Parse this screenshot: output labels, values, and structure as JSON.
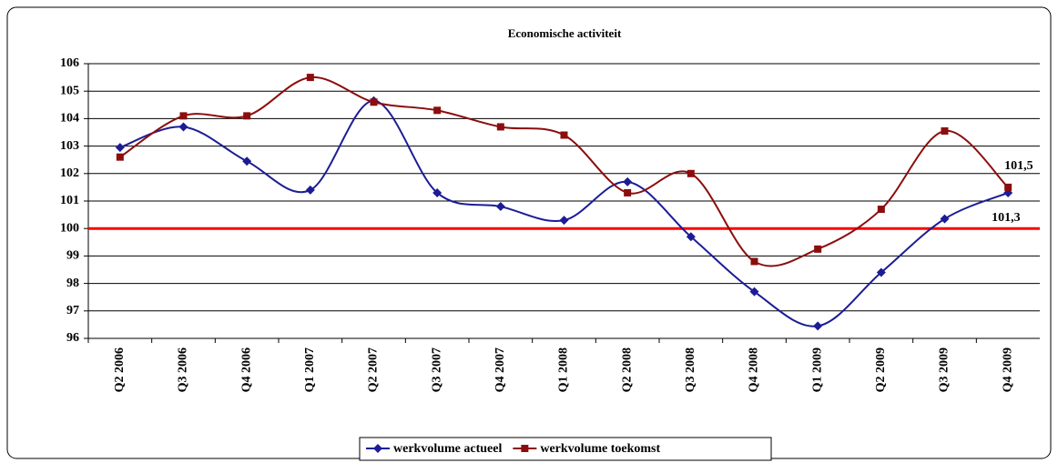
{
  "chart_data": {
    "type": "line",
    "title": "Economische activiteit",
    "categories": [
      "Q2 2006",
      "Q3 2006",
      "Q4 2006",
      "Q1 2007",
      "Q2 2007",
      "Q3 2007",
      "Q4 2007",
      "Q1 2008",
      "Q2 2008",
      "Q3 2008",
      "Q4 2008",
      "Q1 2009",
      "Q2 2009",
      "Q3 2009",
      "Q4 2009"
    ],
    "series": [
      {
        "name": "werkvolume actueel",
        "color": "#1c1c96",
        "marker": "diamond",
        "values": [
          102.95,
          103.7,
          102.45,
          101.4,
          104.65,
          101.3,
          100.8,
          100.3,
          101.7,
          99.7,
          97.7,
          96.45,
          98.4,
          100.35,
          101.3
        ],
        "value_labels": [
          null,
          null,
          null,
          null,
          null,
          null,
          null,
          null,
          null,
          null,
          null,
          null,
          null,
          null,
          "101,3"
        ]
      },
      {
        "name": "werkvolume toekomst",
        "color": "#8b0d0d",
        "marker": "square",
        "values": [
          102.6,
          104.1,
          104.1,
          105.5,
          104.6,
          104.3,
          103.7,
          103.4,
          101.3,
          102.0,
          98.8,
          99.25,
          100.7,
          103.55,
          101.5
        ],
        "value_labels": [
          null,
          null,
          null,
          null,
          null,
          null,
          null,
          null,
          null,
          null,
          null,
          null,
          null,
          null,
          "101,5"
        ]
      }
    ],
    "ylim": [
      96,
      106
    ],
    "yticks": [
      96,
      97,
      98,
      99,
      100,
      101,
      102,
      103,
      104,
      105,
      106
    ],
    "grid": true,
    "reference_line": {
      "value": 100,
      "color": "#ff0000"
    },
    "legend": "bottom",
    "smooth": true
  }
}
